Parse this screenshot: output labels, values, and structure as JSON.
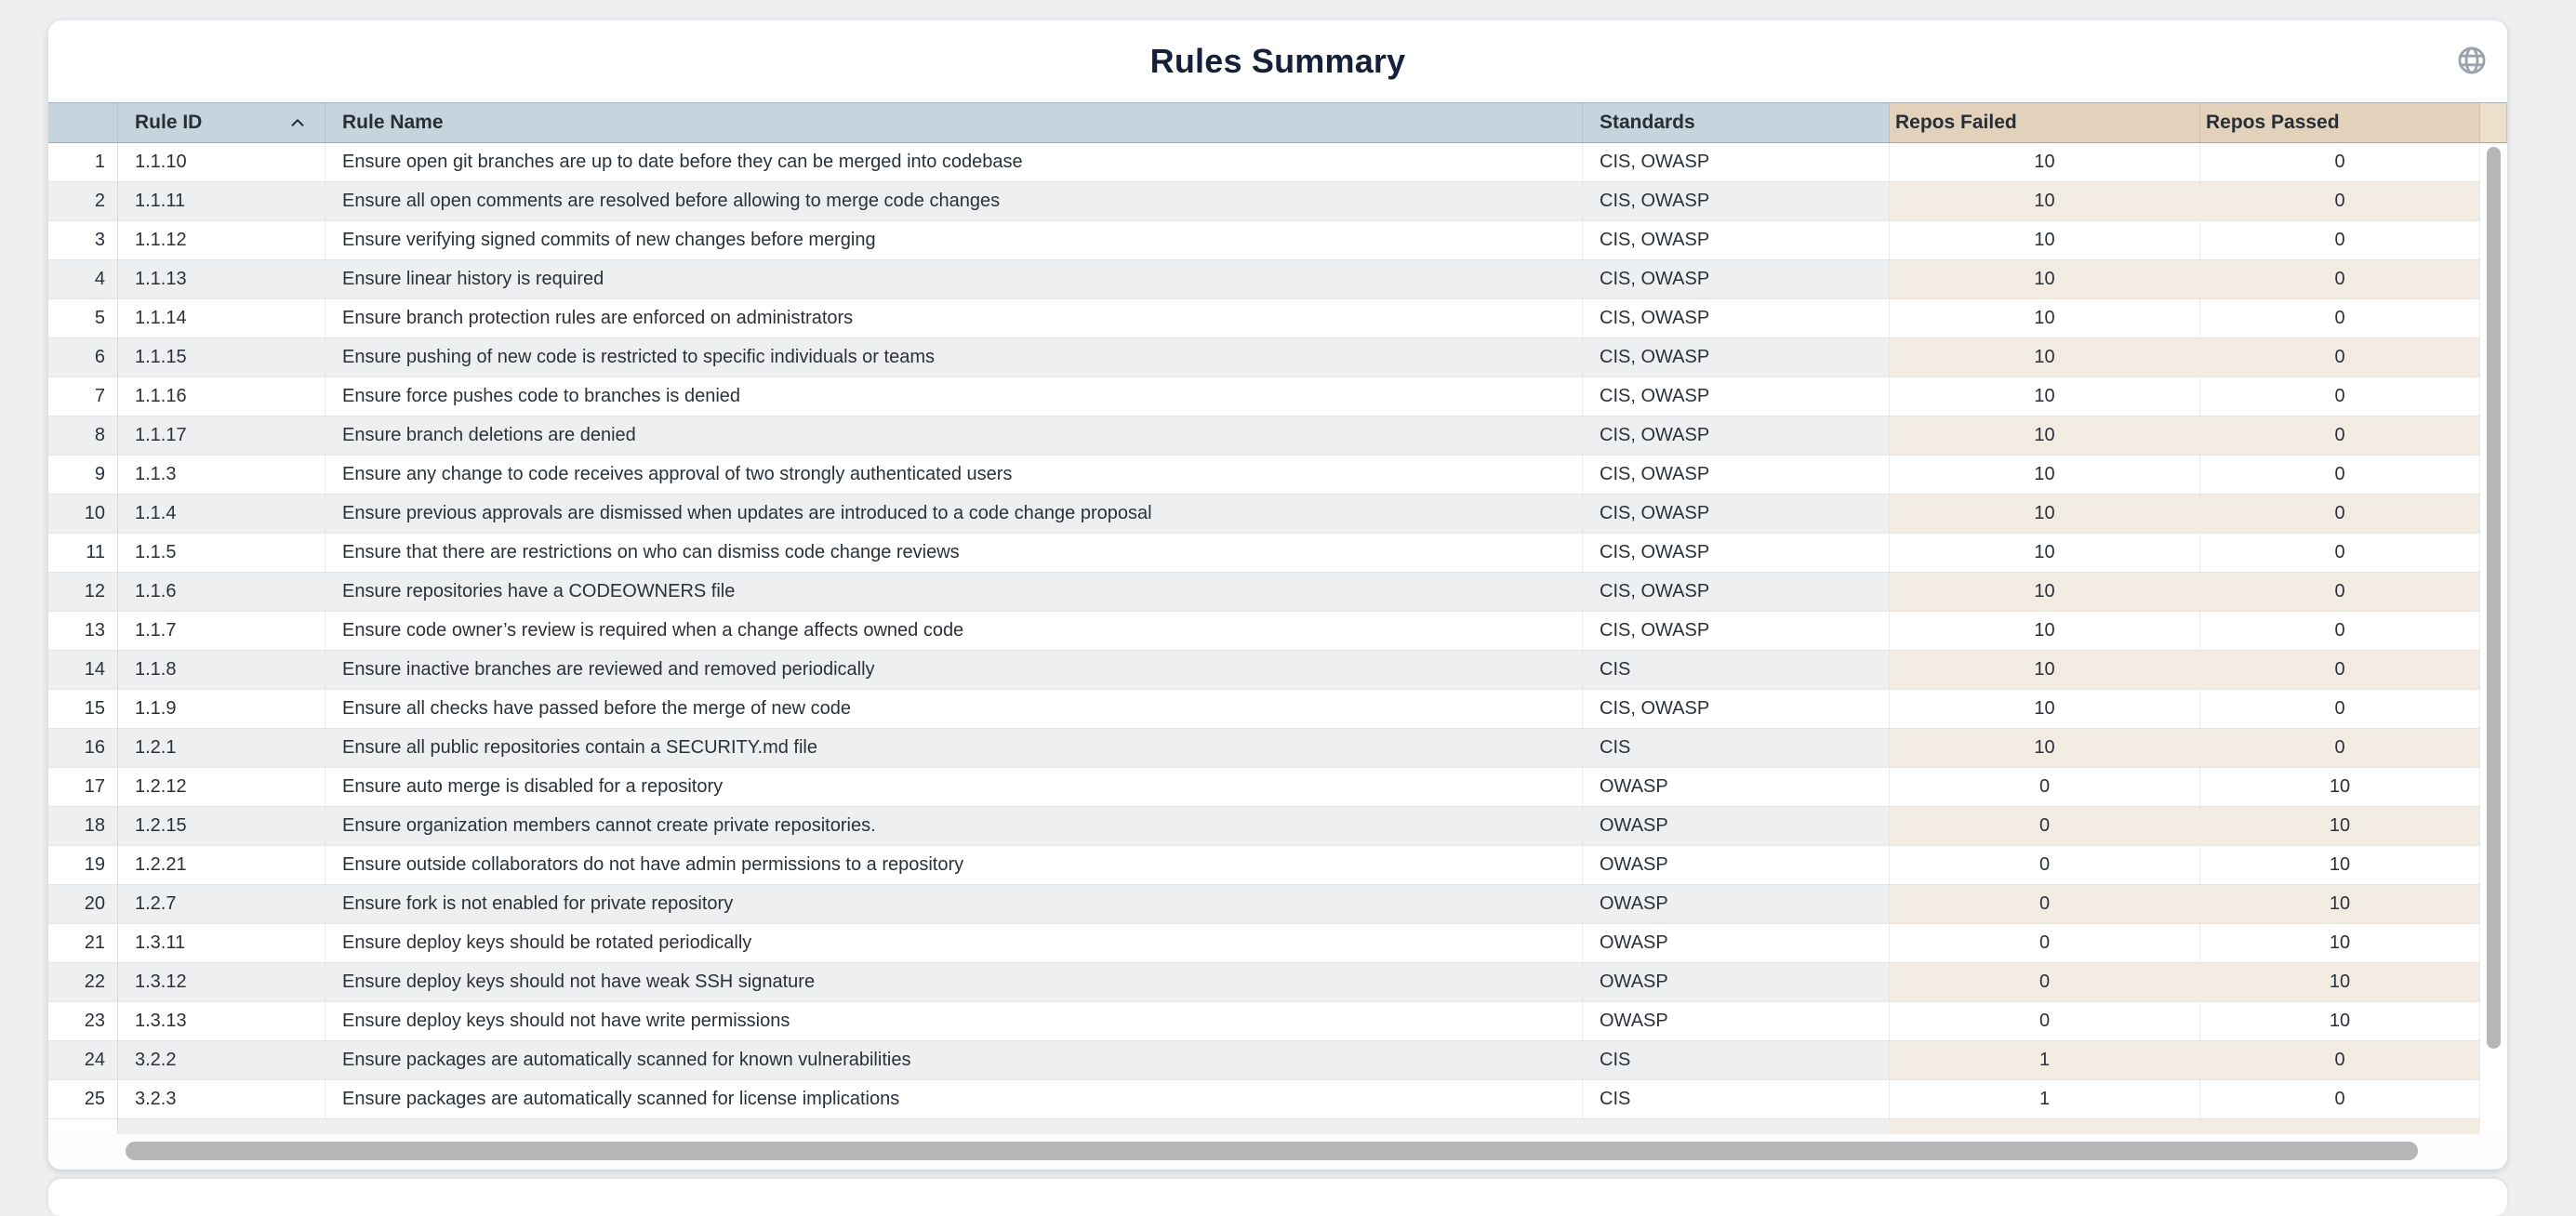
{
  "page": {
    "title": "Rules Summary"
  },
  "header_icons": {
    "globe": "globe-icon"
  },
  "colors": {
    "header_blue": "#c7d3dd",
    "header_tan": "#e3d2bb",
    "even_row_gray": "#edeff0",
    "even_row_tan": "#f3ece3",
    "title_text": "#15213a",
    "body_text": "#2b313a",
    "scrollbar_thumb": "#b5b6b8"
  },
  "table": {
    "columns": [
      {
        "key": "rule_id",
        "label": "Rule ID",
        "sort": "asc"
      },
      {
        "key": "rule_name",
        "label": "Rule Name",
        "sort": null
      },
      {
        "key": "standards",
        "label": "Standards",
        "sort": null
      },
      {
        "key": "repos_failed",
        "label": "Repos Failed",
        "sort": null
      },
      {
        "key": "repos_passed",
        "label": "Repos Passed",
        "sort": null
      }
    ],
    "rows": [
      {
        "num": "1",
        "rule_id": "1.1.10",
        "rule_name": "Ensure open git branches are up to date before they can be merged into codebase",
        "standards": "CIS, OWASP",
        "repos_failed": "10",
        "repos_passed": "0"
      },
      {
        "num": "2",
        "rule_id": "1.1.11",
        "rule_name": "Ensure all open comments are resolved before allowing to merge code changes",
        "standards": "CIS, OWASP",
        "repos_failed": "10",
        "repos_passed": "0"
      },
      {
        "num": "3",
        "rule_id": "1.1.12",
        "rule_name": "Ensure verifying signed commits of new changes before merging",
        "standards": "CIS, OWASP",
        "repos_failed": "10",
        "repos_passed": "0"
      },
      {
        "num": "4",
        "rule_id": "1.1.13",
        "rule_name": "Ensure linear history is required",
        "standards": "CIS, OWASP",
        "repos_failed": "10",
        "repos_passed": "0"
      },
      {
        "num": "5",
        "rule_id": "1.1.14",
        "rule_name": "Ensure branch protection rules are enforced on administrators",
        "standards": "CIS, OWASP",
        "repos_failed": "10",
        "repos_passed": "0"
      },
      {
        "num": "6",
        "rule_id": "1.1.15",
        "rule_name": "Ensure pushing of new code is restricted to specific individuals or teams",
        "standards": "CIS, OWASP",
        "repos_failed": "10",
        "repos_passed": "0"
      },
      {
        "num": "7",
        "rule_id": "1.1.16",
        "rule_name": "Ensure force pushes code to branches is denied",
        "standards": "CIS, OWASP",
        "repos_failed": "10",
        "repos_passed": "0"
      },
      {
        "num": "8",
        "rule_id": "1.1.17",
        "rule_name": "Ensure branch deletions are denied",
        "standards": "CIS, OWASP",
        "repos_failed": "10",
        "repos_passed": "0"
      },
      {
        "num": "9",
        "rule_id": "1.1.3",
        "rule_name": "Ensure any change to code receives approval of two strongly authenticated users",
        "standards": "CIS, OWASP",
        "repos_failed": "10",
        "repos_passed": "0"
      },
      {
        "num": "10",
        "rule_id": "1.1.4",
        "rule_name": "Ensure previous approvals are dismissed when updates are introduced to a code change proposal",
        "standards": "CIS, OWASP",
        "repos_failed": "10",
        "repos_passed": "0"
      },
      {
        "num": "11",
        "rule_id": "1.1.5",
        "rule_name": "Ensure that there are restrictions on who can dismiss code change reviews",
        "standards": "CIS, OWASP",
        "repos_failed": "10",
        "repos_passed": "0"
      },
      {
        "num": "12",
        "rule_id": "1.1.6",
        "rule_name": "Ensure repositories have a CODEOWNERS file",
        "standards": "CIS, OWASP",
        "repos_failed": "10",
        "repos_passed": "0"
      },
      {
        "num": "13",
        "rule_id": "1.1.7",
        "rule_name": "Ensure code owner’s review is required when a change affects owned code",
        "standards": "CIS, OWASP",
        "repos_failed": "10",
        "repos_passed": "0"
      },
      {
        "num": "14",
        "rule_id": "1.1.8",
        "rule_name": "Ensure inactive branches are reviewed and removed periodically",
        "standards": "CIS",
        "repos_failed": "10",
        "repos_passed": "0"
      },
      {
        "num": "15",
        "rule_id": "1.1.9",
        "rule_name": "Ensure all checks have passed before the merge of new code",
        "standards": "CIS, OWASP",
        "repos_failed": "10",
        "repos_passed": "0"
      },
      {
        "num": "16",
        "rule_id": "1.2.1",
        "rule_name": "Ensure all public repositories contain a SECURITY.md file",
        "standards": "CIS",
        "repos_failed": "10",
        "repos_passed": "0"
      },
      {
        "num": "17",
        "rule_id": "1.2.12",
        "rule_name": "Ensure auto merge is disabled for a repository",
        "standards": "OWASP",
        "repos_failed": "0",
        "repos_passed": "10"
      },
      {
        "num": "18",
        "rule_id": "1.2.15",
        "rule_name": "Ensure organization members cannot create private repositories.",
        "standards": "OWASP",
        "repos_failed": "0",
        "repos_passed": "10"
      },
      {
        "num": "19",
        "rule_id": "1.2.21",
        "rule_name": "Ensure outside collaborators do not have admin permissions to a repository",
        "standards": "OWASP",
        "repos_failed": "0",
        "repos_passed": "10"
      },
      {
        "num": "20",
        "rule_id": "1.2.7",
        "rule_name": "Ensure fork is not enabled for private repository",
        "standards": "OWASP",
        "repos_failed": "0",
        "repos_passed": "10"
      },
      {
        "num": "21",
        "rule_id": "1.3.11",
        "rule_name": "Ensure deploy keys should be rotated periodically",
        "standards": "OWASP",
        "repos_failed": "0",
        "repos_passed": "10"
      },
      {
        "num": "22",
        "rule_id": "1.3.12",
        "rule_name": "Ensure deploy keys should not have weak SSH signature",
        "standards": "OWASP",
        "repos_failed": "0",
        "repos_passed": "10"
      },
      {
        "num": "23",
        "rule_id": "1.3.13",
        "rule_name": "Ensure deploy keys should not have write permissions",
        "standards": "OWASP",
        "repos_failed": "0",
        "repos_passed": "10"
      },
      {
        "num": "24",
        "rule_id": "3.2.2",
        "rule_name": "Ensure packages are automatically scanned for known vulnerabilities",
        "standards": "CIS",
        "repos_failed": "1",
        "repos_passed": "0"
      },
      {
        "num": "25",
        "rule_id": "3.2.3",
        "rule_name": "Ensure packages are automatically scanned for license implications",
        "standards": "CIS",
        "repos_failed": "1",
        "repos_passed": "0"
      }
    ]
  }
}
